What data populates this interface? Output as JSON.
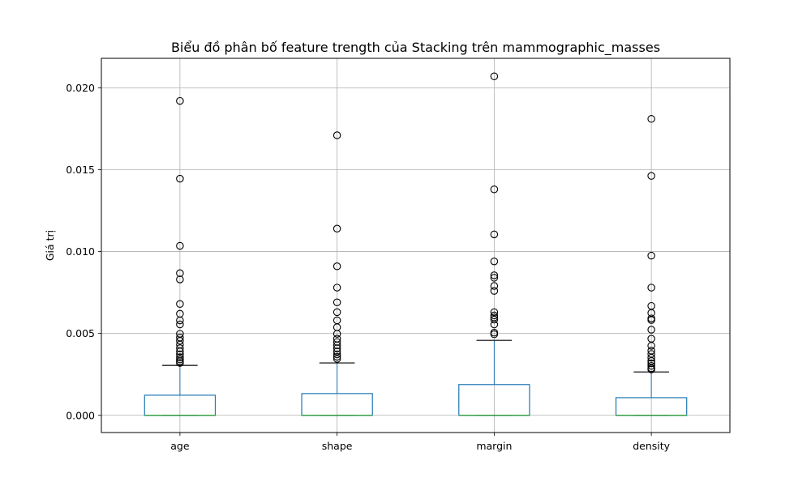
{
  "chart_data": {
    "type": "box",
    "title": "Biểu đồ phân bố feature trength của Stacking trên mammographic_masses",
    "xlabel": "",
    "ylabel": "Giá trị",
    "ylim": [
      -0.00105,
      0.0218
    ],
    "yticks": [
      0.0,
      0.005,
      0.01,
      0.015,
      0.02
    ],
    "ytick_labels": [
      "0.000",
      "0.005",
      "0.010",
      "0.015",
      "0.020"
    ],
    "grid": true,
    "categories": [
      "age",
      "shape",
      "margin",
      "density"
    ],
    "boxes": [
      {
        "label": "age",
        "min": 0.0,
        "q1": 0.0,
        "median": 0.0,
        "q3": 0.00123,
        "whisker_high": 0.00305,
        "outliers": [
          0.0192,
          0.01445,
          0.01035,
          0.00868,
          0.0083,
          0.0068,
          0.0062,
          0.0058,
          0.00555,
          0.00498,
          0.00475,
          0.00455,
          0.00432,
          0.0041,
          0.0039,
          0.00372,
          0.00355,
          0.00342,
          0.0033,
          0.0032
        ]
      },
      {
        "label": "shape",
        "min": 0.0,
        "q1": 0.0,
        "median": 0.0,
        "q3": 0.00133,
        "whisker_high": 0.0032,
        "outliers": [
          0.0171,
          0.0114,
          0.0091,
          0.0078,
          0.0069,
          0.0063,
          0.0058,
          0.00538,
          0.00498,
          0.00468,
          0.00448,
          0.00428,
          0.0041,
          0.0039,
          0.00372,
          0.00358,
          0.00345
        ]
      },
      {
        "label": "margin",
        "min": 0.0,
        "q1": 0.0,
        "median": 0.0,
        "q3": 0.00188,
        "whisker_high": 0.00458,
        "outliers": [
          0.0207,
          0.0138,
          0.01105,
          0.0094,
          0.00855,
          0.0084,
          0.0079,
          0.0076,
          0.0063,
          0.0061,
          0.00598,
          0.00585,
          0.00555,
          0.00505,
          0.00495
        ]
      },
      {
        "label": "density",
        "min": 0.0,
        "q1": 0.0,
        "median": 0.0,
        "q3": 0.00108,
        "whisker_high": 0.00265,
        "outliers": [
          0.0181,
          0.01462,
          0.00975,
          0.0078,
          0.00668,
          0.00625,
          0.00592,
          0.00582,
          0.00523,
          0.00468,
          0.00425,
          0.00395,
          0.00375,
          0.00352,
          0.00332,
          0.00318,
          0.00302,
          0.00288,
          0.0028
        ]
      }
    ],
    "colors": {
      "box": "#1f77b4",
      "median": "#2ca02c",
      "whisker": "#1f77b4",
      "cap": "#000000",
      "grid": "#b0b0b0",
      "outlier": "#000000"
    }
  }
}
